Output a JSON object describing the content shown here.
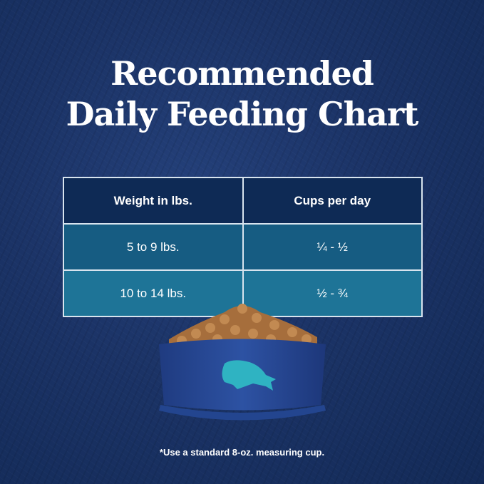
{
  "title": {
    "line1": "Recommended",
    "line2": "Daily Feeding Chart"
  },
  "table": {
    "headers": [
      "Weight in lbs.",
      "Cups per day"
    ],
    "rows": [
      [
        "5 to 9 lbs.",
        "¼ - ½"
      ],
      [
        "10 to 14 lbs.",
        "½ - ¾"
      ]
    ]
  },
  "footnote": "*Use a standard 8-oz. measuring cup.",
  "colors": {
    "background": "#1b3366",
    "header": "#0e2a55",
    "row1": "#165c82",
    "row2": "#1e7497",
    "bowl": "#2a4c9a",
    "logo": "#2fb3c2"
  }
}
